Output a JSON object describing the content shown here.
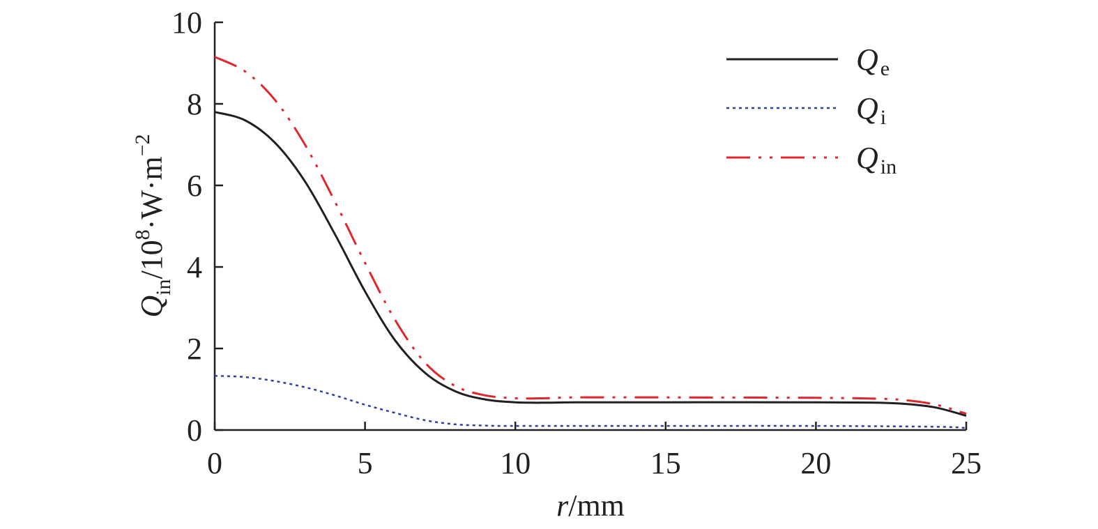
{
  "chart_data": {
    "type": "line",
    "xlabel": {
      "var": "r",
      "unit": "/mm"
    },
    "ylabel": {
      "var": "Q",
      "sub": "in",
      "unit": "/10",
      "exp": "8",
      "unit2": "·W·m",
      "exp2": "−2"
    },
    "xlim": [
      0,
      25
    ],
    "ylim": [
      0,
      10
    ],
    "xticks": [
      "0",
      "5",
      "10",
      "15",
      "20",
      "25"
    ],
    "yticks": [
      "0",
      "2",
      "4",
      "6",
      "8",
      "10"
    ],
    "grid": false,
    "legend_position": "top-right",
    "series": [
      {
        "name": "Qe",
        "label_main": "Q",
        "label_sub": "e",
        "color": "#231f20",
        "style": "solid",
        "x": [
          0,
          1,
          2,
          3,
          4,
          5,
          6,
          7,
          8,
          9,
          10,
          11,
          12,
          15,
          20,
          22,
          23,
          24,
          25
        ],
        "y": [
          7.8,
          7.6,
          7.05,
          6.1,
          4.8,
          3.4,
          2.2,
          1.4,
          0.95,
          0.75,
          0.68,
          0.67,
          0.68,
          0.68,
          0.68,
          0.67,
          0.64,
          0.55,
          0.35
        ]
      },
      {
        "name": "Qi",
        "label_main": "Q",
        "label_sub": "i",
        "color": "#2e3e9c",
        "style": "dotted",
        "x": [
          0,
          1,
          2,
          3,
          4,
          5,
          6,
          7,
          8,
          9,
          10,
          15,
          20,
          24,
          25
        ],
        "y": [
          1.33,
          1.3,
          1.2,
          1.05,
          0.85,
          0.62,
          0.42,
          0.24,
          0.14,
          0.11,
          0.1,
          0.1,
          0.1,
          0.08,
          0.05
        ]
      },
      {
        "name": "Qin",
        "label_main": "Q",
        "label_sub": "in",
        "color": "#e0262c",
        "style": "dashdotdot",
        "x": [
          0,
          1,
          2,
          3,
          4,
          5,
          6,
          7,
          8,
          9,
          10,
          11,
          12,
          15,
          20,
          22,
          23,
          24,
          25
        ],
        "y": [
          9.15,
          8.8,
          8.1,
          7.0,
          5.6,
          4.1,
          2.7,
          1.65,
          1.08,
          0.85,
          0.78,
          0.78,
          0.8,
          0.8,
          0.79,
          0.77,
          0.73,
          0.62,
          0.4
        ]
      }
    ]
  }
}
